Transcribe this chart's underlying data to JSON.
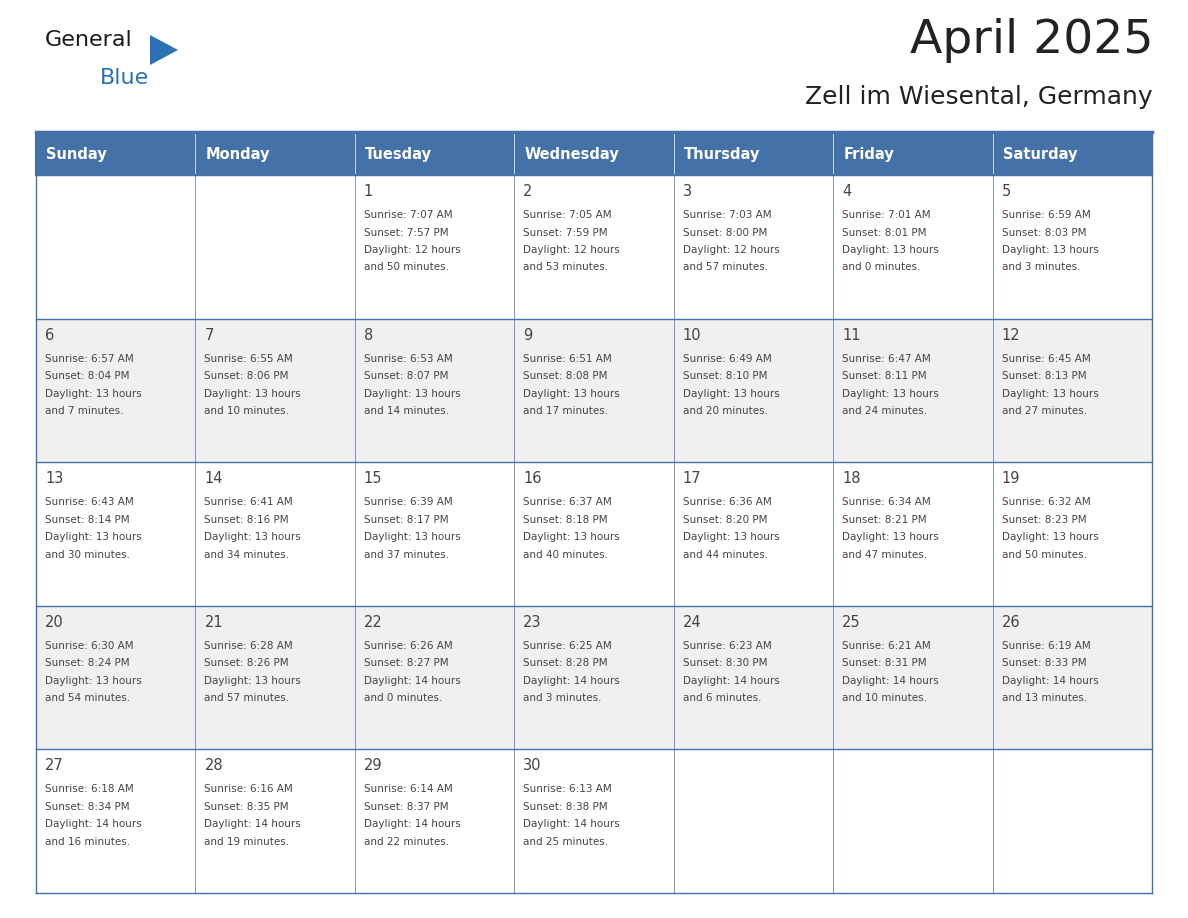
{
  "title": "April 2025",
  "subtitle": "Zell im Wiesental, Germany",
  "header_bg": "#4472a8",
  "header_text": "#ffffff",
  "header_days": [
    "Sunday",
    "Monday",
    "Tuesday",
    "Wednesday",
    "Thursday",
    "Friday",
    "Saturday"
  ],
  "row_bg_even": "#f0f0f0",
  "row_bg_odd": "#ffffff",
  "cell_border_color": "#4472a8",
  "text_color": "#444444",
  "title_color": "#222222",
  "logo_general_color": "#1a1a1a",
  "logo_blue_color": "#2a72b5",
  "weeks": [
    [
      {
        "day": "",
        "info": ""
      },
      {
        "day": "",
        "info": ""
      },
      {
        "day": "1",
        "info": "Sunrise: 7:07 AM\nSunset: 7:57 PM\nDaylight: 12 hours\nand 50 minutes."
      },
      {
        "day": "2",
        "info": "Sunrise: 7:05 AM\nSunset: 7:59 PM\nDaylight: 12 hours\nand 53 minutes."
      },
      {
        "day": "3",
        "info": "Sunrise: 7:03 AM\nSunset: 8:00 PM\nDaylight: 12 hours\nand 57 minutes."
      },
      {
        "day": "4",
        "info": "Sunrise: 7:01 AM\nSunset: 8:01 PM\nDaylight: 13 hours\nand 0 minutes."
      },
      {
        "day": "5",
        "info": "Sunrise: 6:59 AM\nSunset: 8:03 PM\nDaylight: 13 hours\nand 3 minutes."
      }
    ],
    [
      {
        "day": "6",
        "info": "Sunrise: 6:57 AM\nSunset: 8:04 PM\nDaylight: 13 hours\nand 7 minutes."
      },
      {
        "day": "7",
        "info": "Sunrise: 6:55 AM\nSunset: 8:06 PM\nDaylight: 13 hours\nand 10 minutes."
      },
      {
        "day": "8",
        "info": "Sunrise: 6:53 AM\nSunset: 8:07 PM\nDaylight: 13 hours\nand 14 minutes."
      },
      {
        "day": "9",
        "info": "Sunrise: 6:51 AM\nSunset: 8:08 PM\nDaylight: 13 hours\nand 17 minutes."
      },
      {
        "day": "10",
        "info": "Sunrise: 6:49 AM\nSunset: 8:10 PM\nDaylight: 13 hours\nand 20 minutes."
      },
      {
        "day": "11",
        "info": "Sunrise: 6:47 AM\nSunset: 8:11 PM\nDaylight: 13 hours\nand 24 minutes."
      },
      {
        "day": "12",
        "info": "Sunrise: 6:45 AM\nSunset: 8:13 PM\nDaylight: 13 hours\nand 27 minutes."
      }
    ],
    [
      {
        "day": "13",
        "info": "Sunrise: 6:43 AM\nSunset: 8:14 PM\nDaylight: 13 hours\nand 30 minutes."
      },
      {
        "day": "14",
        "info": "Sunrise: 6:41 AM\nSunset: 8:16 PM\nDaylight: 13 hours\nand 34 minutes."
      },
      {
        "day": "15",
        "info": "Sunrise: 6:39 AM\nSunset: 8:17 PM\nDaylight: 13 hours\nand 37 minutes."
      },
      {
        "day": "16",
        "info": "Sunrise: 6:37 AM\nSunset: 8:18 PM\nDaylight: 13 hours\nand 40 minutes."
      },
      {
        "day": "17",
        "info": "Sunrise: 6:36 AM\nSunset: 8:20 PM\nDaylight: 13 hours\nand 44 minutes."
      },
      {
        "day": "18",
        "info": "Sunrise: 6:34 AM\nSunset: 8:21 PM\nDaylight: 13 hours\nand 47 minutes."
      },
      {
        "day": "19",
        "info": "Sunrise: 6:32 AM\nSunset: 8:23 PM\nDaylight: 13 hours\nand 50 minutes."
      }
    ],
    [
      {
        "day": "20",
        "info": "Sunrise: 6:30 AM\nSunset: 8:24 PM\nDaylight: 13 hours\nand 54 minutes."
      },
      {
        "day": "21",
        "info": "Sunrise: 6:28 AM\nSunset: 8:26 PM\nDaylight: 13 hours\nand 57 minutes."
      },
      {
        "day": "22",
        "info": "Sunrise: 6:26 AM\nSunset: 8:27 PM\nDaylight: 14 hours\nand 0 minutes."
      },
      {
        "day": "23",
        "info": "Sunrise: 6:25 AM\nSunset: 8:28 PM\nDaylight: 14 hours\nand 3 minutes."
      },
      {
        "day": "24",
        "info": "Sunrise: 6:23 AM\nSunset: 8:30 PM\nDaylight: 14 hours\nand 6 minutes."
      },
      {
        "day": "25",
        "info": "Sunrise: 6:21 AM\nSunset: 8:31 PM\nDaylight: 14 hours\nand 10 minutes."
      },
      {
        "day": "26",
        "info": "Sunrise: 6:19 AM\nSunset: 8:33 PM\nDaylight: 14 hours\nand 13 minutes."
      }
    ],
    [
      {
        "day": "27",
        "info": "Sunrise: 6:18 AM\nSunset: 8:34 PM\nDaylight: 14 hours\nand 16 minutes."
      },
      {
        "day": "28",
        "info": "Sunrise: 6:16 AM\nSunset: 8:35 PM\nDaylight: 14 hours\nand 19 minutes."
      },
      {
        "day": "29",
        "info": "Sunrise: 6:14 AM\nSunset: 8:37 PM\nDaylight: 14 hours\nand 22 minutes."
      },
      {
        "day": "30",
        "info": "Sunrise: 6:13 AM\nSunset: 8:38 PM\nDaylight: 14 hours\nand 25 minutes."
      },
      {
        "day": "",
        "info": ""
      },
      {
        "day": "",
        "info": ""
      },
      {
        "day": "",
        "info": ""
      }
    ]
  ],
  "fig_width": 11.88,
  "fig_height": 9.18,
  "dpi": 100
}
